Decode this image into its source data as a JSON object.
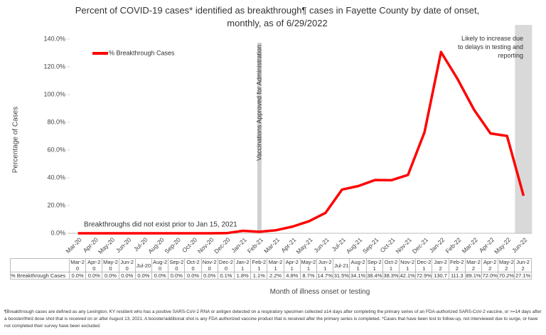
{
  "chart_data": {
    "type": "line",
    "title": "Percent of COVID-19 cases* identified as breakthrough¶ cases in Fayette County by date of onset, monthly, as of 6/29/2022",
    "y_label": "Percentage of Cases",
    "x_label": "Month of illness onset or testing",
    "categories": [
      "Mar-20",
      "Apr-20",
      "May-20",
      "Jun-20",
      "Jul-20",
      "Aug-20",
      "Sep-20",
      "Oct-20",
      "Nov-20",
      "Dec-20",
      "Jan-21",
      "Feb-21",
      "Mar-21",
      "Apr-21",
      "May-21",
      "Jun-21",
      "Jul-21",
      "Aug-21",
      "Sep-21",
      "Oct-21",
      "Nov-21",
      "Dec-21",
      "Jan-22",
      "Feb-22",
      "Mar-22",
      "Apr-22",
      "May-22",
      "Jun-22"
    ],
    "series": [
      {
        "name": "% Breakthrough Cases",
        "color": "#ff0000",
        "values": [
          0.0,
          0.0,
          0.0,
          0.0,
          0.0,
          0.0,
          0.0,
          0.0,
          0.0,
          0.1,
          1.8,
          1.1,
          2.2,
          4.8,
          8.7,
          14.7,
          31.5,
          34.1,
          38.4,
          38.3,
          42.1,
          72.9,
          130.7,
          111.3,
          89.1,
          72.0,
          70.2,
          27.1
        ],
        "value_labels": [
          "0.0%",
          "0.0%",
          "0.0%",
          "0.0%",
          "0.0%",
          "0.0%",
          "0.0%",
          "0.0%",
          "0.0%",
          "0.1%",
          "1.8%",
          "1.1%",
          "2.2%",
          "4.8%",
          "8.7%",
          "14.7%",
          "31.5%",
          "34.1%",
          "38.4%",
          "38.3%",
          "42.1%",
          "72.9%",
          "130.7",
          "111.3",
          "89.1%",
          "72.0%",
          "70.2%",
          "27.1%"
        ]
      }
    ],
    "ylim": [
      0,
      140
    ],
    "yticks": [
      {
        "value": 0,
        "label": "0.0%"
      },
      {
        "value": 20,
        "label": "20.0%"
      },
      {
        "value": 40,
        "label": "40.0%"
      },
      {
        "value": 60,
        "label": "60.0%"
      },
      {
        "value": 80,
        "label": "80.0%"
      },
      {
        "value": 100,
        "label": "100.0%"
      },
      {
        "value": 120,
        "label": "120.0%"
      },
      {
        "value": 140,
        "label": "140.0%"
      }
    ],
    "legend_position": "upper left",
    "annotations": [
      {
        "category": "Feb-21",
        "text": "Vaccinations Approved for Administration"
      },
      {
        "category": "Jun-22",
        "text": "Likely to increase due to delays in testing and reporting"
      },
      {
        "category": "Jan-21",
        "text": "Breakthroughs did not exist prior to Jan 15, 2021"
      }
    ],
    "footnote": "¶Breakthrough cases are defined as any Lexington, KY resident who has a positive SARS-CoV-2 RNA or antigen detected on a respiratory specimen collected ≥14 days after completing the primary series of an FDA-authorized SARS-CoV-2 vaccine, or >=14 days after a booster/third dose shot that is received on or after August 13, 2021.  A booster/additional shot is any FDA authorized vaccine product that is received after the primary series is completed. *Cases that have been lost to follow-up, not interviewed due to surge, or have not completed their survey have been excluded."
  }
}
